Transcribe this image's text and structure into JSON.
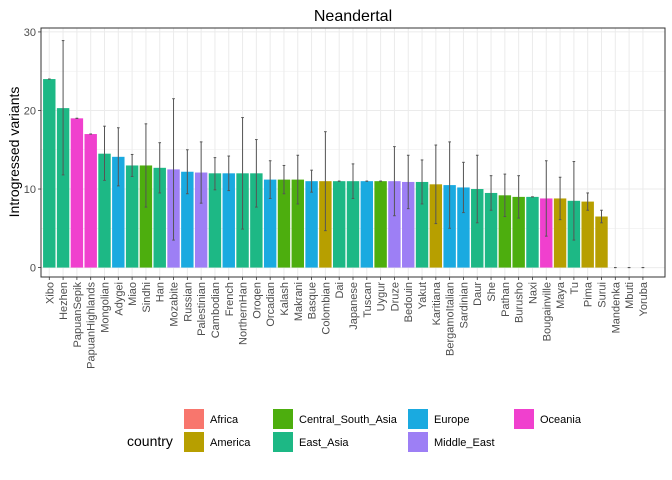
{
  "chart_data": {
    "type": "bar",
    "title": "Neandertal",
    "xlabel": "",
    "ylabel": "Introgressed variants",
    "ylim": [
      -1.2,
      30.5
    ],
    "yticks": [
      0,
      10,
      20,
      30
    ],
    "grid": true,
    "legend": {
      "title": "country",
      "placement": "bottom",
      "entries": [
        {
          "name": "Africa",
          "color": "#F8766D"
        },
        {
          "name": "America",
          "color": "#B79F00"
        },
        {
          "name": "Central_South_Asia",
          "color": "#4DAE0E"
        },
        {
          "name": "East_Asia",
          "color": "#1DB885"
        },
        {
          "name": "Europe",
          "color": "#1AAAE0"
        },
        {
          "name": "Middle_East",
          "color": "#9D7FF5"
        },
        {
          "name": "Oceania",
          "color": "#F040CE"
        }
      ]
    },
    "colors": {
      "Africa": "#F8766D",
      "America": "#B79F00",
      "Central_South_Asia": "#4DAE0E",
      "East_Asia": "#1DB885",
      "Europe": "#1AAAE0",
      "Middle_East": "#9D7FF5",
      "Oceania": "#F040CE"
    },
    "bars": [
      {
        "label": "Xibo",
        "value": 24.0,
        "err_low": 24.0,
        "err_high": 24.0,
        "group": "East_Asia"
      },
      {
        "label": "Hezhen",
        "value": 20.3,
        "err_low": 11.8,
        "err_high": 28.9,
        "group": "East_Asia"
      },
      {
        "label": "PapuanSepik",
        "value": 19.0,
        "err_low": 19.0,
        "err_high": 19.0,
        "group": "Oceania"
      },
      {
        "label": "PapuanHighlands",
        "value": 17.0,
        "err_low": 17.0,
        "err_high": 17.0,
        "group": "Oceania"
      },
      {
        "label": "Mongolian",
        "value": 14.5,
        "err_low": 11.1,
        "err_high": 18.0,
        "group": "East_Asia"
      },
      {
        "label": "Adygei",
        "value": 14.1,
        "err_low": 10.4,
        "err_high": 17.8,
        "group": "Europe"
      },
      {
        "label": "Miao",
        "value": 13.0,
        "err_low": 11.6,
        "err_high": 14.4,
        "group": "East_Asia"
      },
      {
        "label": "Sindhi",
        "value": 13.0,
        "err_low": 7.7,
        "err_high": 18.3,
        "group": "Central_South_Asia"
      },
      {
        "label": "Han",
        "value": 12.7,
        "err_low": 9.5,
        "err_high": 15.9,
        "group": "East_Asia"
      },
      {
        "label": "Mozabite",
        "value": 12.5,
        "err_low": 3.5,
        "err_high": 21.5,
        "group": "Middle_East"
      },
      {
        "label": "Russian",
        "value": 12.2,
        "err_low": 9.4,
        "err_high": 15.0,
        "group": "Europe"
      },
      {
        "label": "Palestinian",
        "value": 12.1,
        "err_low": 8.2,
        "err_high": 16.0,
        "group": "Middle_East"
      },
      {
        "label": "Cambodian",
        "value": 12.0,
        "err_low": 9.9,
        "err_high": 14.0,
        "group": "East_Asia"
      },
      {
        "label": "French",
        "value": 12.0,
        "err_low": 9.8,
        "err_high": 14.2,
        "group": "Europe"
      },
      {
        "label": "NorthernHan",
        "value": 12.0,
        "err_low": 4.9,
        "err_high": 19.1,
        "group": "East_Asia"
      },
      {
        "label": "Oroqen",
        "value": 12.0,
        "err_low": 7.7,
        "err_high": 16.3,
        "group": "East_Asia"
      },
      {
        "label": "Orcadian",
        "value": 11.2,
        "err_low": 8.8,
        "err_high": 13.6,
        "group": "Europe"
      },
      {
        "label": "Kalash",
        "value": 11.2,
        "err_low": 9.4,
        "err_high": 13.0,
        "group": "Central_South_Asia"
      },
      {
        "label": "Makrani",
        "value": 11.2,
        "err_low": 8.1,
        "err_high": 14.3,
        "group": "Central_South_Asia"
      },
      {
        "label": "Basque",
        "value": 11.0,
        "err_low": 9.6,
        "err_high": 12.4,
        "group": "Europe"
      },
      {
        "label": "Colombian",
        "value": 11.0,
        "err_low": 4.7,
        "err_high": 17.3,
        "group": "America"
      },
      {
        "label": "Dai",
        "value": 11.0,
        "err_low": 11.0,
        "err_high": 11.0,
        "group": "East_Asia"
      },
      {
        "label": "Japanese",
        "value": 11.0,
        "err_low": 8.8,
        "err_high": 13.2,
        "group": "East_Asia"
      },
      {
        "label": "Tuscan",
        "value": 11.0,
        "err_low": 11.0,
        "err_high": 11.0,
        "group": "Europe"
      },
      {
        "label": "Uygur",
        "value": 11.0,
        "err_low": 11.0,
        "err_high": 11.0,
        "group": "Central_South_Asia"
      },
      {
        "label": "Druze",
        "value": 11.0,
        "err_low": 6.6,
        "err_high": 15.4,
        "group": "Middle_East"
      },
      {
        "label": "Bedouin",
        "value": 10.9,
        "err_low": 7.5,
        "err_high": 14.3,
        "group": "Middle_East"
      },
      {
        "label": "Yakut",
        "value": 10.9,
        "err_low": 8.1,
        "err_high": 13.7,
        "group": "East_Asia"
      },
      {
        "label": "Karitiana",
        "value": 10.6,
        "err_low": 5.6,
        "err_high": 15.6,
        "group": "America"
      },
      {
        "label": "BergamoItalian",
        "value": 10.5,
        "err_low": 5.0,
        "err_high": 16.0,
        "group": "Europe"
      },
      {
        "label": "Sardinian",
        "value": 10.2,
        "err_low": 7.0,
        "err_high": 13.4,
        "group": "Europe"
      },
      {
        "label": "Daur",
        "value": 10.0,
        "err_low": 5.7,
        "err_high": 14.3,
        "group": "East_Asia"
      },
      {
        "label": "She",
        "value": 9.5,
        "err_low": 7.3,
        "err_high": 11.7,
        "group": "East_Asia"
      },
      {
        "label": "Pathan",
        "value": 9.2,
        "err_low": 6.5,
        "err_high": 11.9,
        "group": "Central_South_Asia"
      },
      {
        "label": "Burusho",
        "value": 9.0,
        "err_low": 6.3,
        "err_high": 11.7,
        "group": "Central_South_Asia"
      },
      {
        "label": "Naxi",
        "value": 9.0,
        "err_low": 9.0,
        "err_high": 9.0,
        "group": "East_Asia"
      },
      {
        "label": "Bougainville",
        "value": 8.8,
        "err_low": 4.0,
        "err_high": 13.6,
        "group": "Oceania"
      },
      {
        "label": "Maya",
        "value": 8.8,
        "err_low": 6.1,
        "err_high": 11.5,
        "group": "America"
      },
      {
        "label": "Tu",
        "value": 8.5,
        "err_low": 3.5,
        "err_high": 13.5,
        "group": "East_Asia"
      },
      {
        "label": "Pima",
        "value": 8.4,
        "err_low": 7.3,
        "err_high": 9.5,
        "group": "America"
      },
      {
        "label": "Surui",
        "value": 6.5,
        "err_low": 5.7,
        "err_high": 7.3,
        "group": "America"
      },
      {
        "label": "Mandenka",
        "value": 0.0,
        "err_low": 0.0,
        "err_high": 0.0,
        "group": "Africa"
      },
      {
        "label": "Mbuti",
        "value": 0.0,
        "err_low": 0.0,
        "err_high": 0.0,
        "group": "Africa"
      },
      {
        "label": "Yoruba",
        "value": 0.0,
        "err_low": 0.0,
        "err_high": 0.0,
        "group": "Africa"
      }
    ]
  }
}
